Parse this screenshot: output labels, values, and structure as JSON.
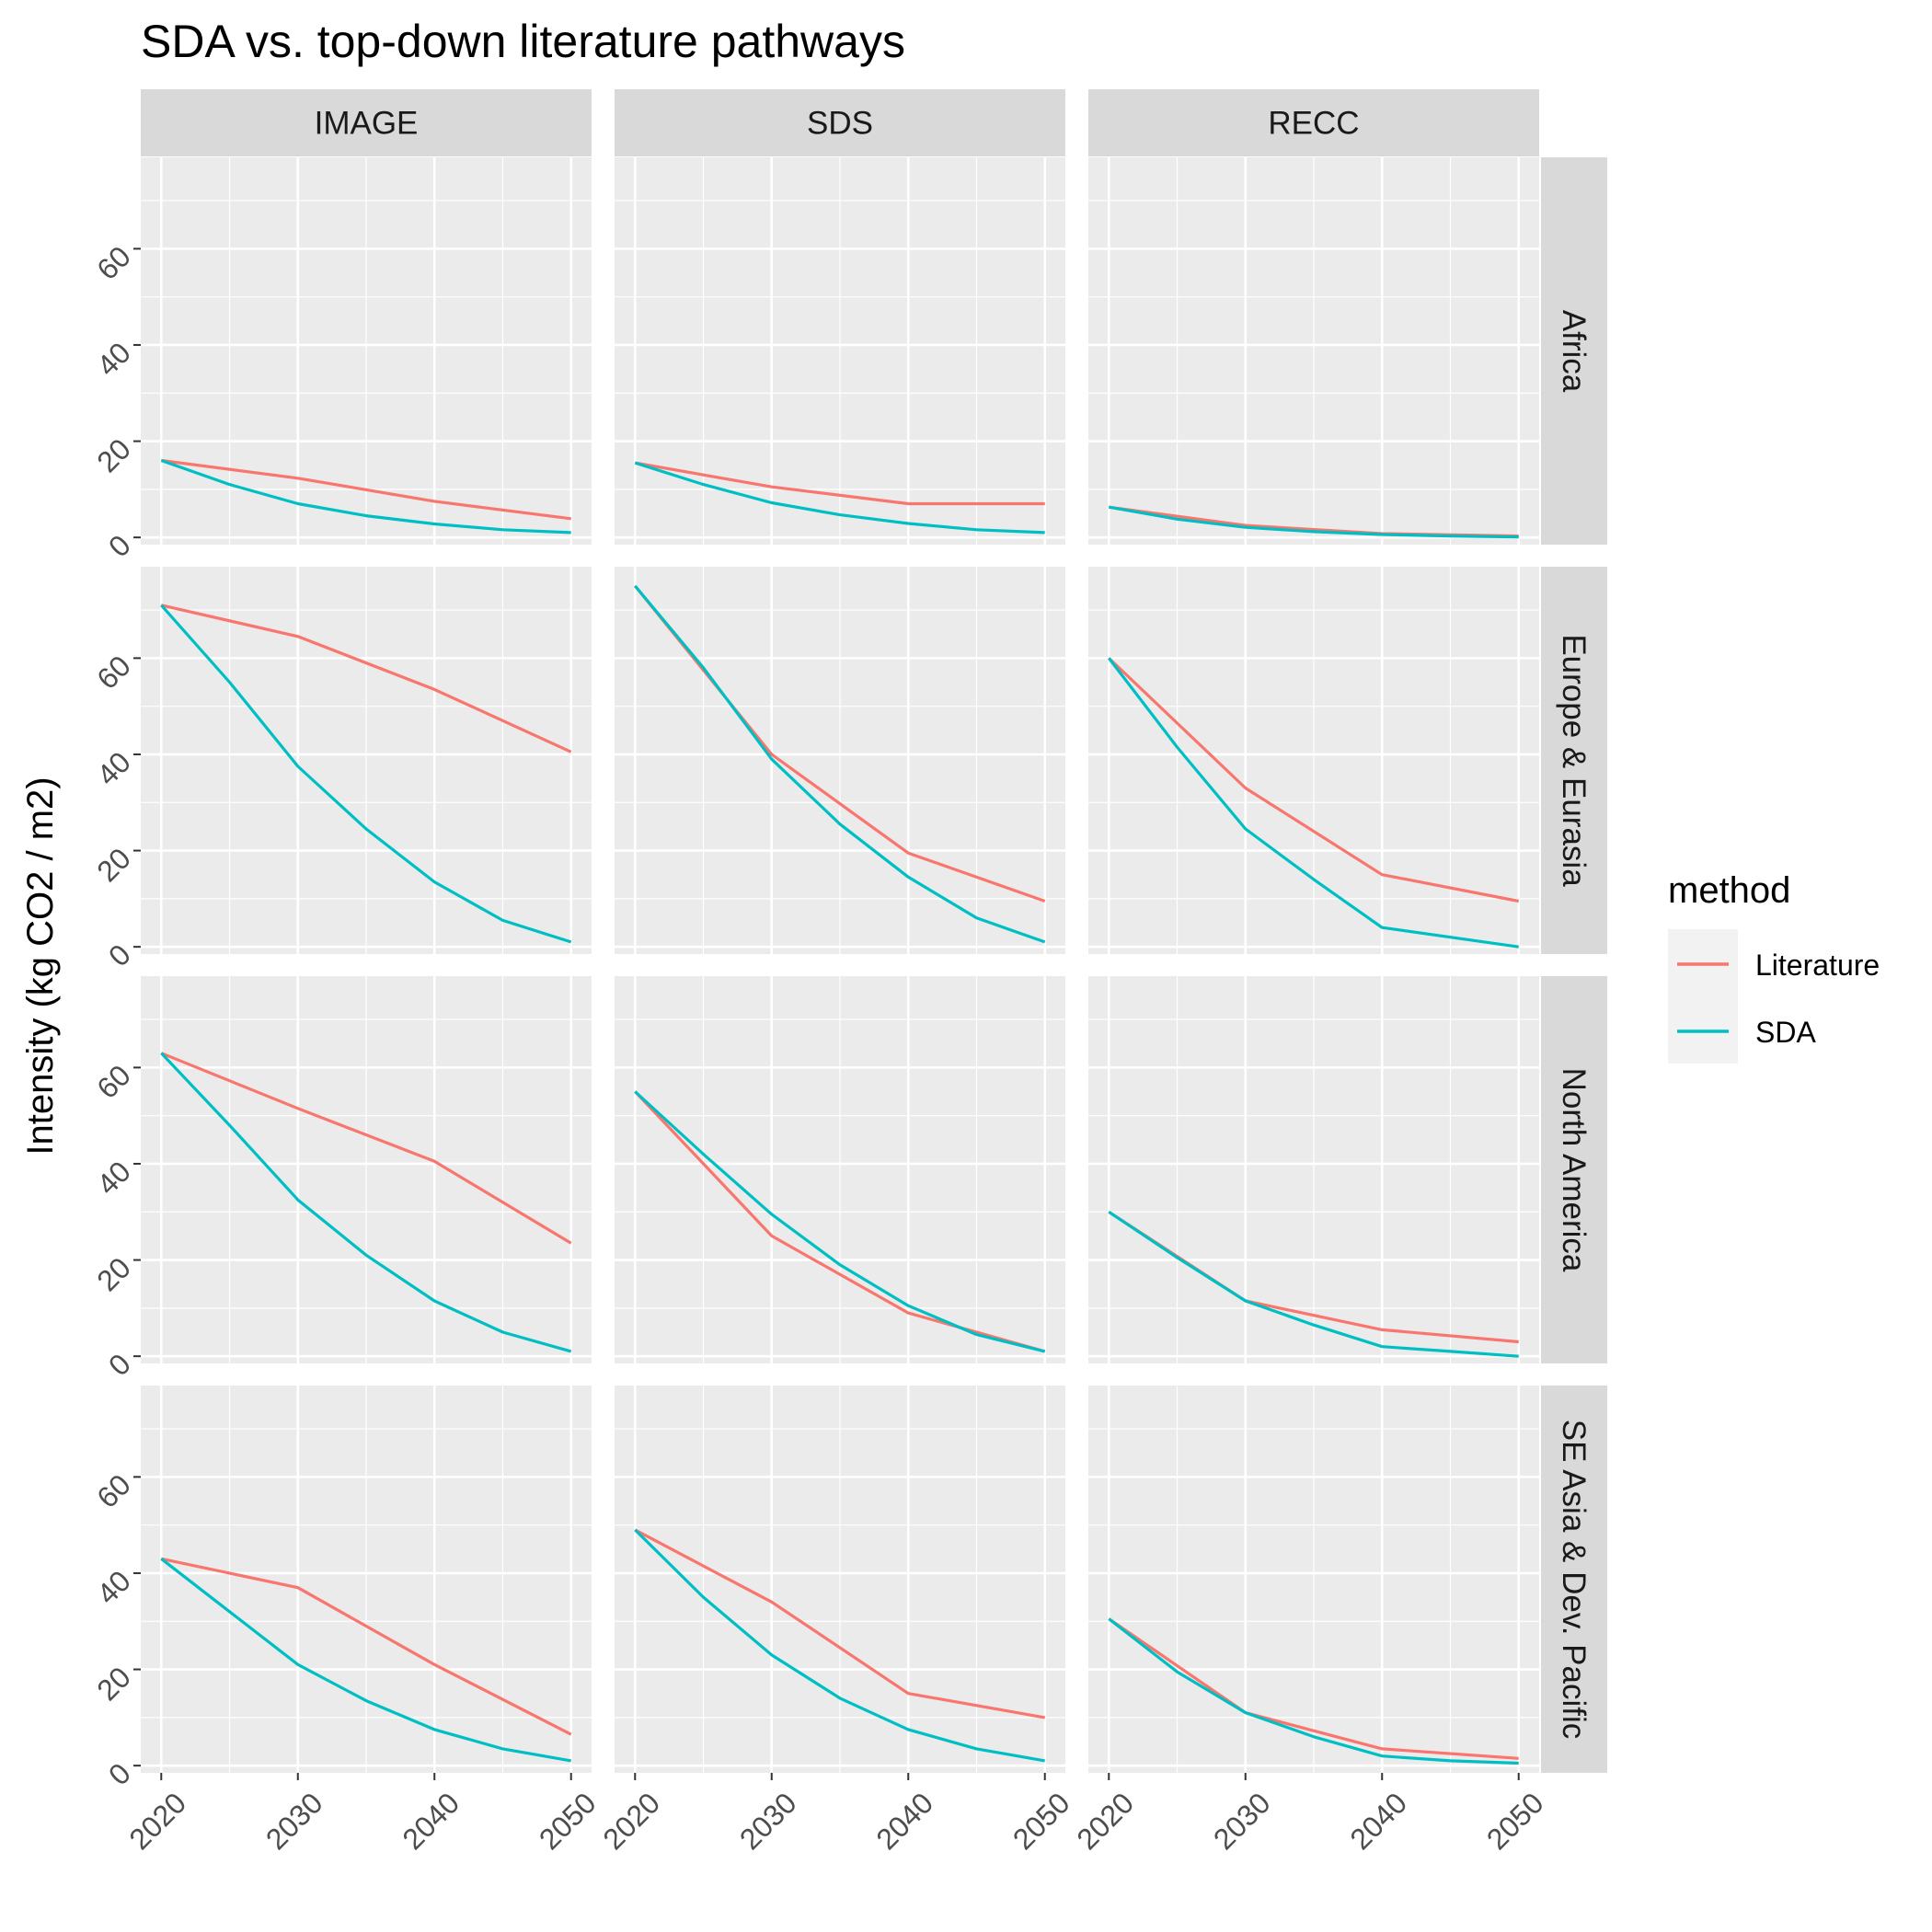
{
  "chart_data": {
    "type": "line",
    "title": "SDA vs. top-down literature pathways",
    "ylabel": "Intensity (kg CO2 / m2)",
    "xlabel": "",
    "x_ticks": [
      "2020",
      "2030",
      "2040",
      "2050"
    ],
    "y_ticks": [
      "0",
      "20",
      "40",
      "60"
    ],
    "xlim": [
      2018.5,
      2051.5
    ],
    "ylim": [
      -1.5,
      79
    ],
    "legend": {
      "title": "method",
      "placement": "right",
      "entries": [
        {
          "name": "Literature",
          "color": "#F8766D"
        },
        {
          "name": "SDA",
          "color": "#00BFC4"
        }
      ]
    },
    "facet_cols": [
      "IMAGE",
      "SDS",
      "RECC"
    ],
    "facet_rows": [
      "Africa",
      "Europe & Eurasia",
      "North America",
      "SE Asia & Dev. Pacific"
    ],
    "grid": true,
    "panels": [
      {
        "col": "IMAGE",
        "row": "Africa",
        "series": [
          {
            "name": "Literature",
            "x": [
              2020,
              2030,
              2040,
              2050
            ],
            "y": [
              16,
              12.3,
              7.5,
              3.9
            ]
          },
          {
            "name": "SDA",
            "x": [
              2020,
              2025,
              2030,
              2035,
              2040,
              2045,
              2050
            ],
            "y": [
              16,
              11,
              7,
              4.5,
              2.8,
              1.6,
              1
            ]
          }
        ]
      },
      {
        "col": "SDS",
        "row": "Africa",
        "series": [
          {
            "name": "Literature",
            "x": [
              2020,
              2030,
              2040,
              2050
            ],
            "y": [
              15.5,
              10.5,
              7,
              7
            ]
          },
          {
            "name": "SDA",
            "x": [
              2020,
              2025,
              2030,
              2035,
              2040,
              2045,
              2050
            ],
            "y": [
              15.5,
              11,
              7.2,
              4.7,
              2.9,
              1.6,
              1
            ]
          }
        ]
      },
      {
        "col": "RECC",
        "row": "Africa",
        "series": [
          {
            "name": "Literature",
            "x": [
              2020,
              2030,
              2040,
              2050
            ],
            "y": [
              6.3,
              2.5,
              0.8,
              0.3
            ]
          },
          {
            "name": "SDA",
            "x": [
              2020,
              2025,
              2030,
              2035,
              2040,
              2045,
              2050
            ],
            "y": [
              6.3,
              3.8,
              2.1,
              1.2,
              0.6,
              0.3,
              0.1
            ]
          }
        ]
      },
      {
        "col": "IMAGE",
        "row": "Europe & Eurasia",
        "series": [
          {
            "name": "Literature",
            "x": [
              2020,
              2030,
              2040,
              2050
            ],
            "y": [
              71,
              64.5,
              53.5,
              40.5
            ]
          },
          {
            "name": "SDA",
            "x": [
              2020,
              2025,
              2030,
              2035,
              2040,
              2045,
              2050
            ],
            "y": [
              71,
              55,
              37.5,
              24.5,
              13.5,
              5.5,
              1
            ]
          }
        ]
      },
      {
        "col": "SDS",
        "row": "Europe & Eurasia",
        "series": [
          {
            "name": "Literature",
            "x": [
              2020,
              2030,
              2040,
              2050
            ],
            "y": [
              75,
              40,
              19.5,
              9.5
            ]
          },
          {
            "name": "SDA",
            "x": [
              2020,
              2025,
              2030,
              2035,
              2040,
              2045,
              2050
            ],
            "y": [
              75,
              58,
              39,
              25.5,
              14.5,
              6,
              1
            ]
          }
        ]
      },
      {
        "col": "RECC",
        "row": "Europe & Eurasia",
        "series": [
          {
            "name": "Literature",
            "x": [
              2020,
              2030,
              2040,
              2050
            ],
            "y": [
              60,
              33,
              15,
              9.5
            ]
          },
          {
            "name": "SDA",
            "x": [
              2020,
              2025,
              2030,
              2035,
              2040,
              2045,
              2050
            ],
            "y": [
              60,
              41.5,
              24.5,
              14,
              4,
              2,
              0
            ]
          }
        ]
      },
      {
        "col": "IMAGE",
        "row": "North America",
        "series": [
          {
            "name": "Literature",
            "x": [
              2020,
              2030,
              2040,
              2050
            ],
            "y": [
              63,
              51.5,
              40.5,
              23.5
            ]
          },
          {
            "name": "SDA",
            "x": [
              2020,
              2025,
              2030,
              2035,
              2040,
              2045,
              2050
            ],
            "y": [
              63,
              48,
              32.5,
              21,
              11.5,
              5,
              1
            ]
          }
        ]
      },
      {
        "col": "SDS",
        "row": "North America",
        "series": [
          {
            "name": "Literature",
            "x": [
              2020,
              2030,
              2040,
              2050
            ],
            "y": [
              55,
              25,
              9,
              1
            ]
          },
          {
            "name": "SDA",
            "x": [
              2020,
              2025,
              2030,
              2035,
              2040,
              2045,
              2050
            ],
            "y": [
              55,
              42,
              29.5,
              19,
              10.5,
              4.5,
              1
            ]
          }
        ]
      },
      {
        "col": "RECC",
        "row": "North America",
        "series": [
          {
            "name": "Literature",
            "x": [
              2020,
              2030,
              2040,
              2050
            ],
            "y": [
              30,
              11.5,
              5.5,
              3
            ]
          },
          {
            "name": "SDA",
            "x": [
              2020,
              2025,
              2030,
              2035,
              2040,
              2045,
              2050
            ],
            "y": [
              30,
              20.5,
              11.5,
              6.5,
              2,
              1,
              0
            ]
          }
        ]
      },
      {
        "col": "IMAGE",
        "row": "SE Asia & Dev. Pacific",
        "series": [
          {
            "name": "Literature",
            "x": [
              2020,
              2030,
              2040,
              2050
            ],
            "y": [
              43,
              37,
              21,
              6.5
            ]
          },
          {
            "name": "SDA",
            "x": [
              2020,
              2025,
              2030,
              2035,
              2040,
              2045,
              2050
            ],
            "y": [
              43,
              32,
              21,
              13.5,
              7.5,
              3.5,
              1
            ]
          }
        ]
      },
      {
        "col": "SDS",
        "row": "SE Asia & Dev. Pacific",
        "series": [
          {
            "name": "Literature",
            "x": [
              2020,
              2030,
              2040,
              2050
            ],
            "y": [
              49,
              34,
              15,
              10
            ]
          },
          {
            "name": "SDA",
            "x": [
              2020,
              2025,
              2030,
              2035,
              2040,
              2045,
              2050
            ],
            "y": [
              49,
              35,
              23,
              14,
              7.5,
              3.5,
              1
            ]
          }
        ]
      },
      {
        "col": "RECC",
        "row": "SE Asia & Dev. Pacific",
        "series": [
          {
            "name": "Literature",
            "x": [
              2020,
              2030,
              2040,
              2050
            ],
            "y": [
              30.5,
              11,
              3.5,
              1.5
            ]
          },
          {
            "name": "SDA",
            "x": [
              2020,
              2025,
              2030,
              2035,
              2040,
              2045,
              2050
            ],
            "y": [
              30.5,
              19.5,
              11,
              6,
              2,
              1,
              0.5
            ]
          }
        ]
      }
    ]
  }
}
